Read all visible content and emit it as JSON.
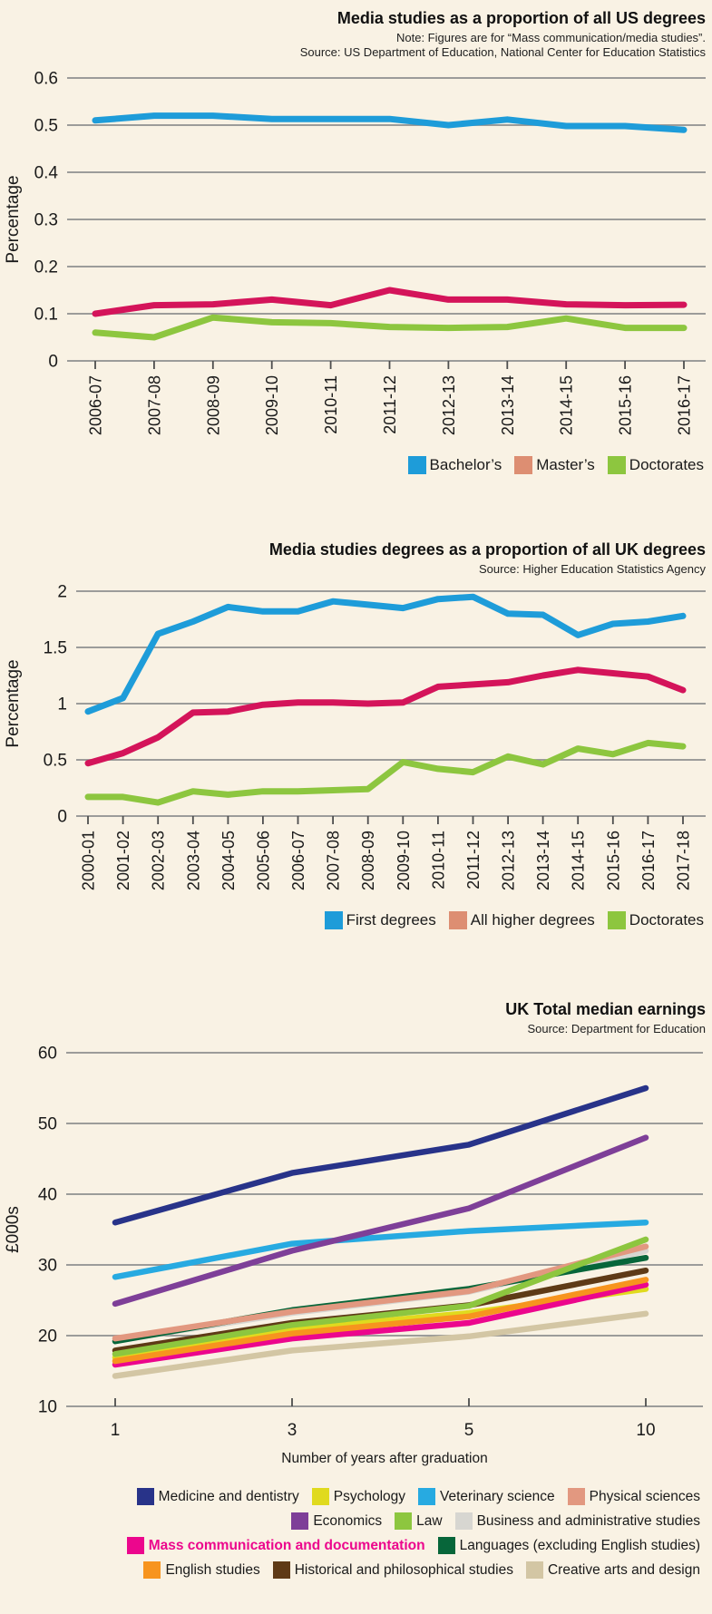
{
  "page_background": "#f9f2e4",
  "chart_data": [
    {
      "type": "line",
      "title": "Media studies as a proportion of all US degrees",
      "note": "Note: Figures are for “Mass communication/media studies”.",
      "source": "Source: US Department of Education, National Center for Education Statistics",
      "ylabel": "Percentage",
      "xlabel": "",
      "ylim": [
        0,
        0.6
      ],
      "grid": true,
      "legend_position": "bottom-right",
      "categories": [
        "2006-07",
        "2007-08",
        "2008-09",
        "2009-10",
        "2010-11",
        "2011-12",
        "2012-13",
        "2013-14",
        "2014-15",
        "2015-16",
        "2016-17"
      ],
      "ytick_values": [
        0.6,
        0.5,
        0.4,
        0.3,
        0.2,
        0.1,
        0
      ],
      "ytick_labels": [
        "0.6",
        "0.5",
        "0.4",
        "0.3",
        "0.2",
        "0.1",
        "0"
      ],
      "series": [
        {
          "name": "Bachelor’s",
          "color": "#1e9cd9",
          "values": [
            0.51,
            0.52,
            0.52,
            0.513,
            0.513,
            0.513,
            0.5,
            0.512,
            0.498,
            0.498,
            0.49
          ]
        },
        {
          "name": "Master’s",
          "color": "#d4145a",
          "legend_color": "#dd8e72",
          "values": [
            0.1,
            0.118,
            0.12,
            0.13,
            0.118,
            0.15,
            0.13,
            0.13,
            0.12,
            0.118,
            0.119
          ]
        },
        {
          "name": "Doctorates",
          "color": "#8dc63f",
          "values": [
            0.06,
            0.05,
            0.092,
            0.082,
            0.08,
            0.072,
            0.07,
            0.072,
            0.09,
            0.07,
            0.07
          ]
        }
      ],
      "legend_rows": [
        [
          0,
          1,
          2
        ]
      ]
    },
    {
      "type": "line",
      "title": "Media studies degrees as a proportion of all UK degrees",
      "source": "Source: Higher Education Statistics Agency",
      "ylabel": "Percentage",
      "xlabel": "",
      "ylim": [
        0,
        2
      ],
      "grid": true,
      "legend_position": "bottom-right",
      "categories": [
        "2000-01",
        "2001-02",
        "2002-03",
        "2003-04",
        "2004-05",
        "2005-06",
        "2006-07",
        "2007-08",
        "2008-09",
        "2009-10",
        "2010-11",
        "2011-12",
        "2012-13",
        "2013-14",
        "2014-15",
        "2015-16",
        "2016-17",
        "2017-18"
      ],
      "ytick_values": [
        2,
        1.5,
        1,
        0.5,
        0
      ],
      "ytick_labels": [
        "2",
        "1.5",
        "1",
        "0.5",
        "0"
      ],
      "series": [
        {
          "name": "First degrees",
          "color": "#1e9cd9",
          "values": [
            0.93,
            1.05,
            1.62,
            1.73,
            1.86,
            1.82,
            1.82,
            1.91,
            1.88,
            1.85,
            1.93,
            1.95,
            1.8,
            1.79,
            1.61,
            1.71,
            1.73,
            1.78
          ]
        },
        {
          "name": "All higher degrees",
          "color": "#d4145a",
          "legend_color": "#dd8e72",
          "values": [
            0.47,
            0.56,
            0.7,
            0.92,
            0.93,
            0.99,
            1.01,
            1.01,
            1.0,
            1.01,
            1.15,
            1.17,
            1.19,
            1.25,
            1.3,
            1.27,
            1.24,
            1.12
          ]
        },
        {
          "name": "Doctorates",
          "color": "#8dc63f",
          "values": [
            0.17,
            0.17,
            0.12,
            0.22,
            0.19,
            0.22,
            0.22,
            0.23,
            0.24,
            0.48,
            0.42,
            0.39,
            0.53,
            0.46,
            0.6,
            0.55,
            0.65,
            0.62
          ]
        }
      ],
      "legend_rows": [
        [
          0,
          1,
          2
        ]
      ]
    },
    {
      "type": "line",
      "title": "UK Total median earnings",
      "source": "Source: Department for Education",
      "ylabel": "£000s",
      "xlabel": "Number of years after graduation",
      "ylim": [
        10,
        60
      ],
      "grid": true,
      "legend_position": "bottom-right",
      "categories": [
        "1",
        "3",
        "5",
        "10"
      ],
      "ytick_values": [
        60,
        50,
        40,
        30,
        20,
        10
      ],
      "ytick_labels": [
        "60",
        "50",
        "40",
        "30",
        "20",
        "10"
      ],
      "series": [
        {
          "name": "Medicine and dentistry",
          "color": "#283389",
          "z": 12,
          "values": [
            36,
            43,
            47,
            55
          ]
        },
        {
          "name": "Psychology",
          "color": "#e0da1e",
          "z": 2,
          "values": [
            16.9,
            20.9,
            23.2,
            26.6
          ]
        },
        {
          "name": "Veterinary science",
          "color": "#27aae1",
          "z": 10,
          "values": [
            28.3,
            33,
            34.8,
            36
          ]
        },
        {
          "name": "Physical sciences",
          "color": "#e29880",
          "z": 8,
          "values": [
            19.6,
            23.4,
            26.3,
            32.6
          ]
        },
        {
          "name": "Economics",
          "color": "#7e3f98",
          "z": 11,
          "values": [
            24.5,
            32,
            38,
            48
          ]
        },
        {
          "name": "Law",
          "color": "#8dc63f",
          "z": 9,
          "values": [
            17.4,
            21.5,
            24.2,
            33.6
          ]
        },
        {
          "name": "Business and administrative studies",
          "color": "#d7d6d1",
          "z": 6,
          "values": [
            19.3,
            23.2,
            26.2,
            32
          ]
        },
        {
          "name": "Mass communication and documentation",
          "color": "#ec068d",
          "z": 3,
          "legend_text_color": "#ec068d",
          "legend_bold": true,
          "values": [
            15.9,
            19.6,
            21.8,
            27.2
          ]
        },
        {
          "name": "Languages (excluding English studies)",
          "color": "#07663a",
          "z": 7,
          "values": [
            19.2,
            23.6,
            26.6,
            31
          ]
        },
        {
          "name": "English studies",
          "color": "#f7941e",
          "z": 4,
          "values": [
            16.4,
            20.3,
            22.7,
            27.9
          ]
        },
        {
          "name": "Historical and philosophical studies",
          "color": "#5e3a16",
          "z": 5,
          "values": [
            17.9,
            21.8,
            24.3,
            29.2
          ]
        },
        {
          "name": "Creative arts and design",
          "color": "#d3c6a4",
          "z": 1,
          "values": [
            14.3,
            17.9,
            19.9,
            23.1
          ]
        }
      ],
      "legend_rows": [
        [
          0,
          1,
          2,
          3
        ],
        [
          4,
          5,
          6
        ],
        [
          7,
          8
        ],
        [
          9,
          10,
          11
        ]
      ]
    }
  ]
}
